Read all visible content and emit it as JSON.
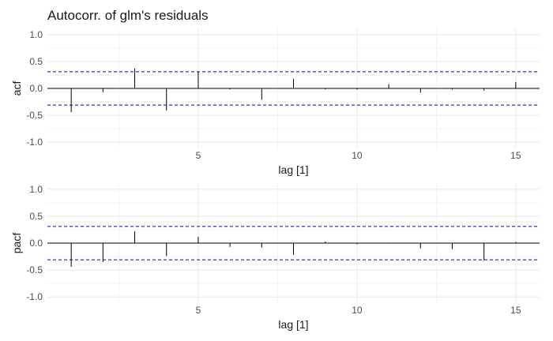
{
  "title": "Autocorr. of glm's residuals",
  "colors": {
    "grid": "#ebebeb",
    "spike": "#000000",
    "ci": "#0000cc",
    "zero": "#000000"
  },
  "chart_data": [
    {
      "type": "bar",
      "ylabel": "acf",
      "xlabel": "lag [1]",
      "xlim": [
        0.25,
        15.75
      ],
      "ylim": [
        -1.1,
        1.1
      ],
      "x_ticks": [
        5,
        10,
        15
      ],
      "y_ticks": [
        -1.0,
        -0.5,
        0.0,
        0.5,
        1.0
      ],
      "y_tick_labels": [
        "-1.0",
        "-0.5",
        "0.0",
        "0.5",
        "1.0"
      ],
      "x_tick_labels": [
        "5",
        "10",
        "15"
      ],
      "confidence_bound": 0.31,
      "lags": [
        1,
        2,
        3,
        4,
        5,
        6,
        7,
        8,
        9,
        10,
        11,
        12,
        13,
        14,
        15
      ],
      "values": [
        -0.44,
        -0.07,
        0.37,
        -0.41,
        0.31,
        -0.02,
        -0.21,
        0.18,
        -0.02,
        -0.02,
        0.08,
        -0.08,
        -0.02,
        -0.04,
        0.12
      ],
      "grid": true
    },
    {
      "type": "bar",
      "ylabel": "pacf",
      "xlabel": "lag [1]",
      "xlim": [
        0.25,
        15.75
      ],
      "ylim": [
        -1.1,
        1.1
      ],
      "x_ticks": [
        5,
        10,
        15
      ],
      "y_ticks": [
        -1.0,
        -0.5,
        0.0,
        0.5,
        1.0
      ],
      "y_tick_labels": [
        "-1.0",
        "-0.5",
        "0.0",
        "0.5",
        "1.0"
      ],
      "x_tick_labels": [
        "5",
        "10",
        "15"
      ],
      "confidence_bound": 0.31,
      "lags": [
        1,
        2,
        3,
        4,
        5,
        6,
        7,
        8,
        9,
        10,
        11,
        12,
        13,
        14,
        15
      ],
      "values": [
        -0.44,
        -0.35,
        0.22,
        -0.24,
        0.12,
        -0.07,
        -0.08,
        -0.22,
        0.03,
        -0.02,
        0.01,
        -0.1,
        -0.11,
        -0.32,
        0.02
      ],
      "grid": true
    }
  ]
}
